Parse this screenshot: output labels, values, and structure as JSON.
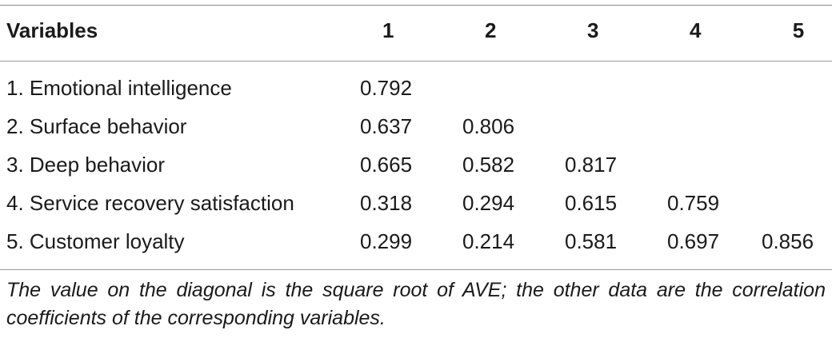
{
  "table": {
    "header": [
      "Variables",
      "1",
      "2",
      "3",
      "4",
      "5"
    ],
    "rows": [
      {
        "label": "1. Emotional intelligence",
        "values": [
          "0.792",
          "",
          "",
          "",
          ""
        ]
      },
      {
        "label": "2. Surface behavior",
        "values": [
          "0.637",
          "0.806",
          "",
          "",
          ""
        ]
      },
      {
        "label": "3. Deep behavior",
        "values": [
          "0.665",
          "0.582",
          "0.817",
          "",
          ""
        ]
      },
      {
        "label": "4. Service recovery satisfaction",
        "values": [
          "0.318",
          "0.294",
          "0.615",
          "0.759",
          ""
        ]
      },
      {
        "label": "5. Customer loyalty",
        "values": [
          "0.299",
          "0.214",
          "0.581",
          "0.697",
          "0.856"
        ]
      }
    ],
    "footnote": "The value on the diagonal is the square root of AVE; the other data are the correlation coefficients of the corresponding variables."
  }
}
